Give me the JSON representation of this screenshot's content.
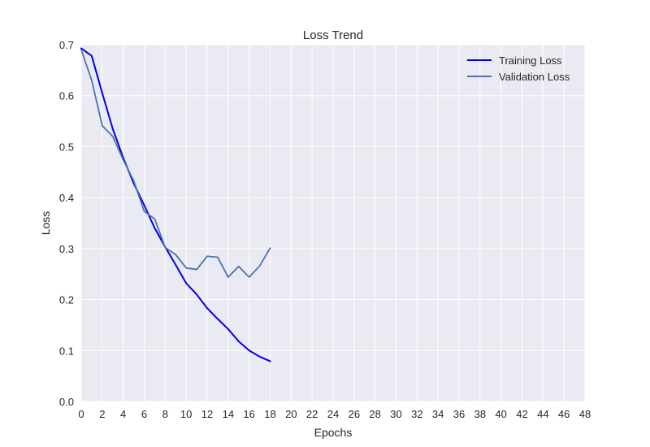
{
  "chart_data": {
    "type": "line",
    "title": "Loss Trend",
    "xlabel": "Epochs",
    "ylabel": "Loss",
    "xlim": [
      0,
      48
    ],
    "ylim": [
      0,
      0.7
    ],
    "xticks": [
      "0",
      "2",
      "4",
      "6",
      "8",
      "10",
      "12",
      "14",
      "16",
      "18",
      "20",
      "22",
      "24",
      "26",
      "28",
      "30",
      "32",
      "34",
      "36",
      "38",
      "40",
      "42",
      "44",
      "46",
      "48"
    ],
    "yticks": [
      "0.0",
      "0.1",
      "0.2",
      "0.3",
      "0.4",
      "0.5",
      "0.6",
      "0.7"
    ],
    "grid": true,
    "legend_position": "top-right",
    "x": [
      0,
      1,
      2,
      3,
      4,
      5,
      6,
      7,
      8,
      9,
      10,
      11,
      12,
      13,
      14,
      15,
      16,
      17,
      18
    ],
    "series": [
      {
        "name": "Training Loss",
        "color": "#0000ee",
        "values": [
          0.693,
          0.678,
          0.605,
          0.535,
          0.478,
          0.428,
          0.385,
          0.34,
          0.303,
          0.268,
          0.232,
          0.21,
          0.183,
          0.162,
          0.142,
          0.118,
          0.1,
          0.088,
          0.079
        ]
      },
      {
        "name": "Validation Loss",
        "color": "#4c72b0",
        "values": [
          0.69,
          0.63,
          0.541,
          0.52,
          0.474,
          0.433,
          0.373,
          0.358,
          0.302,
          0.288,
          0.262,
          0.259,
          0.285,
          0.283,
          0.244,
          0.265,
          0.244,
          0.266,
          0.301
        ]
      }
    ]
  }
}
